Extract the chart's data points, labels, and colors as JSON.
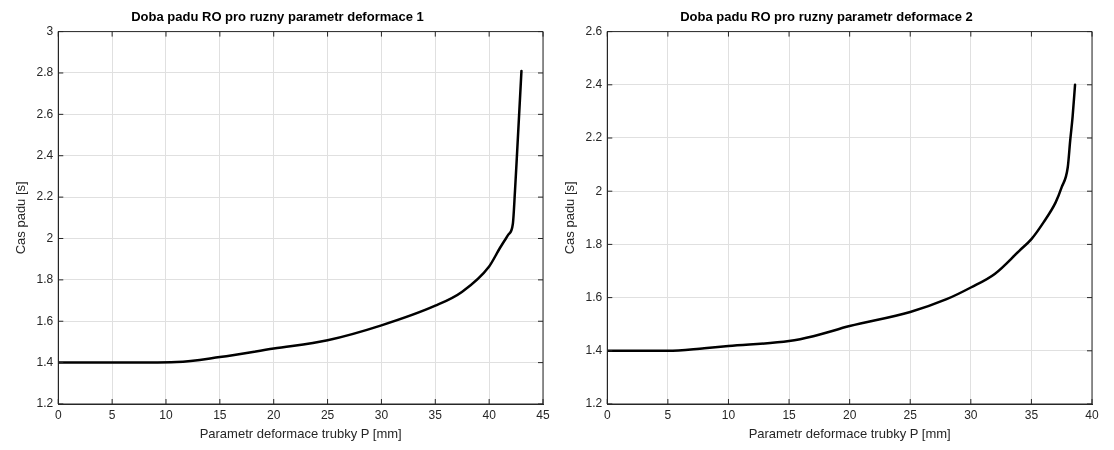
{
  "chart_data": [
    {
      "type": "line",
      "title": "Doba padu RO pro ruzny parametr deformace 1",
      "xlabel": "Parametr deformace trubky P [mm]",
      "ylabel": "Cas padu [s]",
      "xlim": [
        0,
        45
      ],
      "xticks": [
        0,
        5,
        10,
        15,
        20,
        25,
        30,
        35,
        40,
        45
      ],
      "ylim": [
        1.2,
        3
      ],
      "yticks": [
        1.2,
        1.4,
        1.6,
        1.8,
        2,
        2.2,
        2.4,
        2.6,
        2.8,
        3
      ],
      "grid": true,
      "marker": "none",
      "line_style": "solid",
      "series": [
        {
          "color": "#000000",
          "x": [
            0,
            5,
            11,
            15,
            20,
            25,
            30,
            35,
            37.5,
            40,
            41,
            41.8,
            42.2,
            42.4,
            42.6,
            43
          ],
          "values": [
            1.4,
            1.4,
            1.403,
            1.427,
            1.468,
            1.508,
            1.58,
            1.675,
            1.743,
            1.865,
            1.954,
            2.02,
            2.07,
            2.23,
            2.42,
            2.81
          ]
        }
      ]
    },
    {
      "type": "line",
      "title": "Doba padu RO pro ruzny parametr deformace 2",
      "xlabel": "Parametr deformace trubky P [mm]",
      "ylabel": "Cas padu [s]",
      "xlim": [
        0,
        40
      ],
      "xticks": [
        0,
        5,
        10,
        15,
        20,
        25,
        30,
        35,
        40
      ],
      "ylim": [
        1.2,
        2.6
      ],
      "yticks": [
        1.2,
        1.4,
        1.6,
        1.8,
        2,
        2.2,
        2.4,
        2.6
      ],
      "grid": true,
      "marker": "none",
      "line_style": "solid",
      "series": [
        {
          "color": "#000000",
          "x": [
            0,
            5,
            8,
            10,
            15,
            17,
            20,
            25,
            28,
            30,
            32,
            34,
            35,
            36,
            37,
            37.5,
            38,
            38.2,
            38.4,
            38.6
          ],
          "values": [
            1.4,
            1.4,
            1.41,
            1.418,
            1.437,
            1.455,
            1.493,
            1.546,
            1.594,
            1.638,
            1.69,
            1.776,
            1.82,
            1.883,
            1.958,
            2.015,
            2.09,
            2.19,
            2.28,
            2.4
          ]
        }
      ]
    }
  ]
}
